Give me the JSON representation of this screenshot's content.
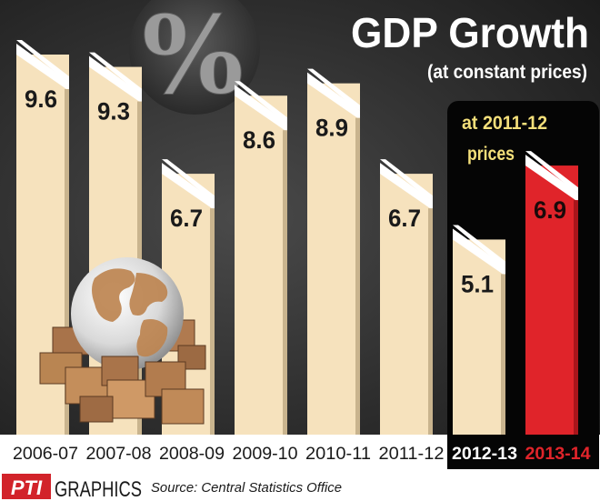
{
  "header": {
    "title": "GDP Growth",
    "subtitle": "(at constant  prices)",
    "percent_symbol": "%"
  },
  "footer": {
    "logo_text": "PTI",
    "brand": "GRAPHICS",
    "source": "Source: Central Statistics Office"
  },
  "colors": {
    "background_dark": "#2a2a2a",
    "bar_cream": "#f6e2bd",
    "bar_red": "#e0242a",
    "label_band": "#ffffff",
    "text_dark": "#1a1a1a",
    "annotation_yellow": "#f3df7a",
    "brand_red": "#d2232a"
  },
  "chart_data": {
    "type": "bar",
    "title": "GDP Growth",
    "subtitle": "(at constant  prices)",
    "categories": [
      "2006-07",
      "2007-08",
      "2008-09",
      "2009-10",
      "2010-11",
      "2011-12",
      "2012-13",
      "2013-14"
    ],
    "values": [
      9.6,
      9.3,
      6.7,
      8.6,
      8.9,
      6.7,
      5.1,
      6.9
    ],
    "value_labels": [
      "9.6",
      "9.3",
      "6.7",
      "8.6",
      "8.9",
      "6.7",
      "5.1",
      "6.9"
    ],
    "highlighted_category": "2013-14",
    "annotation": {
      "lines": [
        "at 2011-12",
        "prices"
      ],
      "applies_to": [
        "2012-13",
        "2013-14"
      ]
    },
    "ylim": [
      0,
      11
    ],
    "xlabel": "",
    "ylabel": "",
    "source": "Source: Central Statistics Office"
  }
}
